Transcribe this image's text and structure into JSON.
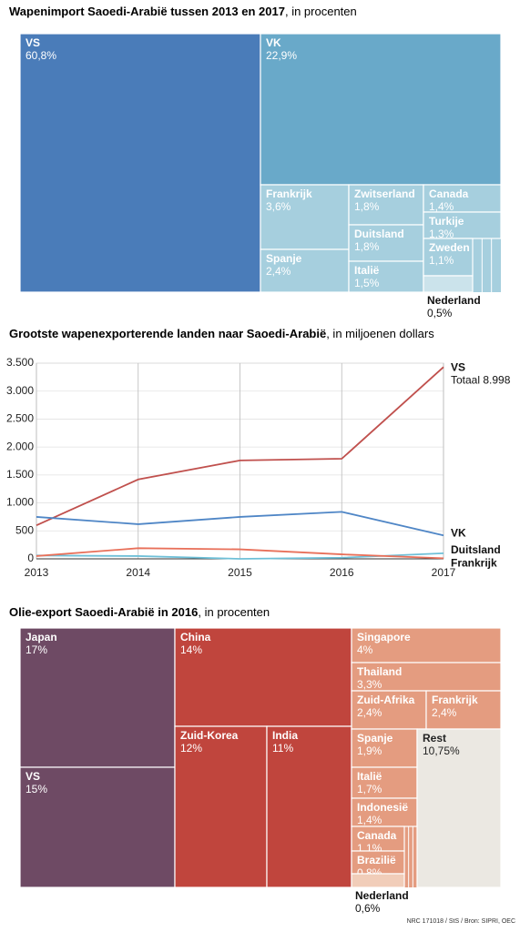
{
  "chart_data": [
    {
      "type": "treemap",
      "title": "Wapenimport Saoedi-Arabië tussen 2013 en 2017",
      "subtitle": ", in procenten",
      "categories": [
        "VS",
        "VK",
        "Frankrijk",
        "Spanje",
        "Zwitserland",
        "Duitsland",
        "Italië",
        "Canada",
        "Turkije",
        "Zweden",
        "Nederland"
      ],
      "values": [
        60.8,
        22.9,
        3.6,
        2.4,
        1.8,
        1.8,
        1.5,
        1.4,
        1.3,
        1.1,
        0.5
      ],
      "value_labels": [
        "60,8%",
        "22,9%",
        "3,6%",
        "2,4%",
        "1,8%",
        "1,8%",
        "1,5%",
        "1,4%",
        "1,3%",
        "1,1%",
        "0,5%"
      ],
      "colors": [
        "#4a7cb9",
        "#69a9c9",
        "#a6cfde",
        "#a6cfde",
        "#a6cfde",
        "#a6cfde",
        "#a6cfde",
        "#a6cfde",
        "#a6cfde",
        "#a6cfde",
        "#cbe3eb"
      ]
    },
    {
      "type": "line",
      "title": "Grootste wapenexporterende landen naar Saoedi-Arabië",
      "subtitle": ", in miljoenen dollars",
      "x": [
        2013,
        2014,
        2015,
        2016,
        2017
      ],
      "xlim": [
        2013,
        2017
      ],
      "xticks": [
        2013,
        2014,
        2015,
        2016,
        2017
      ],
      "ylim": [
        0,
        3500
      ],
      "yticks": [
        {
          "value": 3500,
          "label": "3.500"
        },
        {
          "value": 3000,
          "label": "3.000"
        },
        {
          "value": 2500,
          "label": "2.500"
        },
        {
          "value": 2000,
          "label": "2.000"
        },
        {
          "value": 1500,
          "label": "1.500"
        },
        {
          "value": 1000,
          "label": "1.000"
        },
        500,
        0
      ],
      "grid": true,
      "annotation": "Totaal 8.998",
      "series": [
        {
          "name": "VS",
          "color": "#c0504d",
          "values": [
            600,
            1420,
            1760,
            1790,
            3430
          ]
        },
        {
          "name": "VK",
          "color": "#4f86c6",
          "values": [
            750,
            620,
            750,
            840,
            420
          ]
        },
        {
          "name": "Duitsland",
          "color": "#6fc0d8",
          "values": [
            60,
            50,
            0,
            20,
            100
          ]
        },
        {
          "name": "Frankrijk",
          "color": "#e8705a",
          "values": [
            50,
            190,
            170,
            80,
            10
          ]
        }
      ]
    },
    {
      "type": "treemap",
      "title": "Olie-export Saoedi-Arabië in 2016",
      "subtitle": ", in procenten",
      "categories": [
        "Japan",
        "VS",
        "China",
        "Zuid-Korea",
        "India",
        "Singapore",
        "Thailand",
        "Zuid-Afrika",
        "Frankrijk",
        "Spanje",
        "Italië",
        "Indonesië",
        "Canada",
        "Brazilië",
        "Nederland",
        "Rest"
      ],
      "values": [
        17,
        15,
        14,
        12,
        11,
        4,
        3.3,
        2.4,
        2.4,
        1.9,
        1.7,
        1.4,
        1.1,
        0.8,
        0.6,
        10.75
      ],
      "value_labels": [
        "17%",
        "15%",
        "14%",
        "12%",
        "11%",
        "4%",
        "3,3%",
        "2,4%",
        "2,4%",
        "1,9%",
        "1,7%",
        "1,4%",
        "1,1%",
        "0,8%",
        "0,6%",
        "10,75%"
      ],
      "colors": [
        "#6e4a64",
        "#6e4a64",
        "#c0453d",
        "#c0453d",
        "#c0453d",
        "#e49c80",
        "#e49c80",
        "#e49c80",
        "#e49c80",
        "#e49c80",
        "#e49c80",
        "#e49c80",
        "#e49c80",
        "#e49c80",
        "#f1cdb9",
        "#ebe8e2"
      ]
    }
  ],
  "source": "NRC 171018 / StS / Bron: SIPRI, OEC"
}
